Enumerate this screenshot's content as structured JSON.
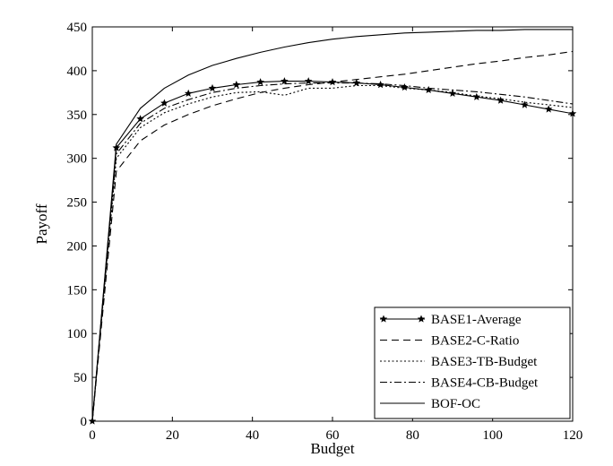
{
  "chart_data": {
    "type": "line",
    "title": "",
    "xlabel": "Budget",
    "ylabel": "Payoff",
    "xlim": [
      0,
      120
    ],
    "ylim": [
      0,
      450
    ],
    "xticks": [
      0,
      20,
      40,
      60,
      80,
      100,
      120
    ],
    "yticks": [
      0,
      50,
      100,
      150,
      200,
      250,
      300,
      350,
      400,
      450
    ],
    "grid": false,
    "legend_position": "bottom-right",
    "x": [
      0,
      6,
      12,
      18,
      24,
      30,
      36,
      42,
      48,
      54,
      60,
      66,
      72,
      78,
      84,
      90,
      96,
      102,
      108,
      114,
      120
    ],
    "series": [
      {
        "name": "BASE1-Average",
        "style": "solid-star",
        "values": [
          0,
          312,
          345,
          363,
          374,
          380,
          384,
          387,
          388,
          388,
          387,
          386,
          384,
          381,
          378,
          374,
          370,
          366,
          361,
          356,
          351
        ]
      },
      {
        "name": "BASE2-C-Ratio",
        "style": "dashed",
        "values": [
          0,
          285,
          320,
          338,
          350,
          360,
          368,
          375,
          380,
          384,
          387,
          390,
          393,
          396,
          400,
          404,
          408,
          411,
          415,
          418,
          422
        ]
      },
      {
        "name": "BASE3-TB-Budget",
        "style": "dotted",
        "values": [
          0,
          300,
          335,
          352,
          362,
          370,
          375,
          376,
          372,
          380,
          380,
          383,
          383,
          380,
          378,
          375,
          371,
          368,
          364,
          361,
          358
        ]
      },
      {
        "name": "BASE4-CB-Budget",
        "style": "dashdot",
        "values": [
          0,
          305,
          340,
          357,
          367,
          375,
          380,
          383,
          385,
          386,
          386,
          386,
          385,
          383,
          380,
          378,
          376,
          373,
          370,
          366,
          362
        ]
      },
      {
        "name": "BOF-OC",
        "style": "solid",
        "values": [
          0,
          316,
          357,
          380,
          395,
          406,
          414,
          421,
          427,
          432,
          436,
          439,
          441,
          443,
          444,
          445,
          446,
          446,
          447,
          447,
          447
        ]
      }
    ]
  }
}
